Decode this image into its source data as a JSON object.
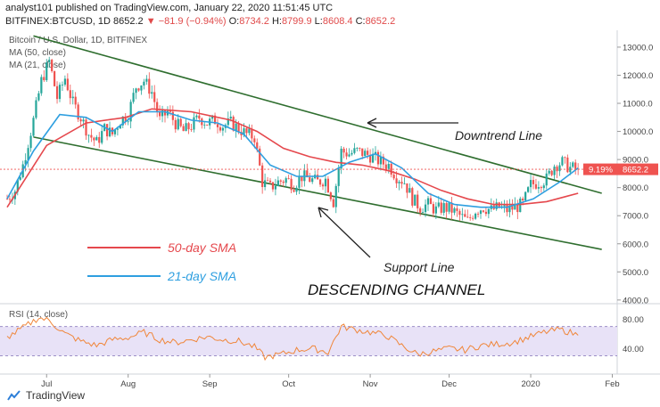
{
  "header": {
    "line1": "analyst101 published on TradingView.com, January 22, 2020 11:51:45 UTC",
    "symbol": "BITFINEX:BTCUSD, 1D",
    "last": "8652.2",
    "change": "▼ −81.9 (−0.94%)",
    "o_label": "O:",
    "o": "8734.2",
    "h_label": "H:",
    "h": "8799.9",
    "l_label": "L:",
    "l": "8608.4",
    "c_label": "C:",
    "c": "8652.2"
  },
  "footer": {
    "brand": "TradingView"
  },
  "colors": {
    "up": "#26a69a",
    "down": "#ef5350",
    "sma50": "#e5484d",
    "sma21": "#2e9fe0",
    "channel": "#2f6e2f",
    "rsi": "#f0863a",
    "price_badge": "#ef5350"
  },
  "chart_data": {
    "type": "candlestick",
    "title": "Bitcoin / U.S. Dollar, 1D, BITFINEX",
    "legend": [
      "MA (50, close)",
      "MA (21, close)"
    ],
    "y_ticks": [
      "13000.0",
      "12000.0",
      "11000.0",
      "10000.0",
      "9000.0",
      "8000.0",
      "7000.0",
      "6000.0",
      "5000.0",
      "4000.0"
    ],
    "ylim": [
      3900,
      13600
    ],
    "x_ticks": [
      {
        "label": "Jul",
        "day": 15
      },
      {
        "label": "Aug",
        "day": 46
      },
      {
        "label": "Sep",
        "day": 77
      },
      {
        "label": "Oct",
        "day": 107
      },
      {
        "label": "Nov",
        "day": 138
      },
      {
        "label": "Dec",
        "day": 168
      },
      {
        "label": "2020",
        "day": 199
      },
      {
        "label": "Feb",
        "day": 230
      }
    ],
    "current_price": "8652.2",
    "price_change_pct": "9.19%",
    "close_path": [
      [
        0,
        7600
      ],
      [
        3,
        7900
      ],
      [
        6,
        8800
      ],
      [
        10,
        10400
      ],
      [
        13,
        11800
      ],
      [
        16,
        12500
      ],
      [
        19,
        11200
      ],
      [
        22,
        11900
      ],
      [
        25,
        11000
      ],
      [
        28,
        10500
      ],
      [
        31,
        9900
      ],
      [
        34,
        9600
      ],
      [
        37,
        10100
      ],
      [
        40,
        9900
      ],
      [
        43,
        10400
      ],
      [
        46,
        10600
      ],
      [
        49,
        11600
      ],
      [
        52,
        11800
      ],
      [
        55,
        11400
      ],
      [
        58,
        10400
      ],
      [
        61,
        10700
      ],
      [
        64,
        10300
      ],
      [
        67,
        10000
      ],
      [
        70,
        10200
      ],
      [
        73,
        10500
      ],
      [
        76,
        10300
      ],
      [
        79,
        10400
      ],
      [
        82,
        10200
      ],
      [
        85,
        10300
      ],
      [
        88,
        10100
      ],
      [
        91,
        9900
      ],
      [
        94,
        9800
      ],
      [
        97,
        8200
      ],
      [
        100,
        8000
      ],
      [
        103,
        8200
      ],
      [
        106,
        8300
      ],
      [
        109,
        8100
      ],
      [
        112,
        8400
      ],
      [
        115,
        8300
      ],
      [
        118,
        8200
      ],
      [
        121,
        8300
      ],
      [
        124,
        7500
      ],
      [
        127,
        9300
      ],
      [
        130,
        9200
      ],
      [
        133,
        9300
      ],
      [
        136,
        9200
      ],
      [
        139,
        9100
      ],
      [
        142,
        8900
      ],
      [
        145,
        8800
      ],
      [
        148,
        8400
      ],
      [
        151,
        8200
      ],
      [
        154,
        7600
      ],
      [
        157,
        7300
      ],
      [
        160,
        7400
      ],
      [
        163,
        7200
      ],
      [
        166,
        7300
      ],
      [
        169,
        7200
      ],
      [
        172,
        7000
      ],
      [
        175,
        6800
      ],
      [
        178,
        7200
      ],
      [
        181,
        7300
      ],
      [
        184,
        7200
      ],
      [
        187,
        7300
      ],
      [
        190,
        7200
      ],
      [
        193,
        7300
      ],
      [
        196,
        7400
      ],
      [
        199,
        8100
      ],
      [
        202,
        8200
      ],
      [
        205,
        8300
      ],
      [
        208,
        8800
      ],
      [
        211,
        8900
      ],
      [
        214,
        8700
      ],
      [
        217,
        8652
      ]
    ],
    "ma50": [
      [
        0,
        7300
      ],
      [
        15,
        9500
      ],
      [
        30,
        10300
      ],
      [
        45,
        10500
      ],
      [
        55,
        10800
      ],
      [
        70,
        10700
      ],
      [
        85,
        10400
      ],
      [
        95,
        10000
      ],
      [
        105,
        9400
      ],
      [
        115,
        9100
      ],
      [
        125,
        8900
      ],
      [
        135,
        8800
      ],
      [
        145,
        8600
      ],
      [
        155,
        8300
      ],
      [
        165,
        7900
      ],
      [
        175,
        7600
      ],
      [
        185,
        7400
      ],
      [
        195,
        7400
      ],
      [
        205,
        7500
      ],
      [
        217,
        7800
      ]
    ],
    "ma21": [
      [
        0,
        7600
      ],
      [
        10,
        9300
      ],
      [
        20,
        10600
      ],
      [
        30,
        10500
      ],
      [
        40,
        10000
      ],
      [
        50,
        10700
      ],
      [
        60,
        10700
      ],
      [
        70,
        10400
      ],
      [
        80,
        10300
      ],
      [
        90,
        9900
      ],
      [
        100,
        8800
      ],
      [
        110,
        8400
      ],
      [
        120,
        8400
      ],
      [
        130,
        8900
      ],
      [
        140,
        9200
      ],
      [
        150,
        8700
      ],
      [
        160,
        7800
      ],
      [
        170,
        7400
      ],
      [
        180,
        7300
      ],
      [
        190,
        7300
      ],
      [
        200,
        7600
      ],
      [
        210,
        8200
      ],
      [
        217,
        8700
      ]
    ],
    "channel_upper": [
      [
        10,
        13400
      ],
      [
        226,
        7800
      ]
    ],
    "channel_lower": [
      [
        10,
        9800
      ],
      [
        226,
        5800
      ]
    ],
    "rsi": {
      "label": "RSI (14, close)",
      "ticks": [
        "80.00",
        "40.00"
      ],
      "band": [
        30,
        70
      ],
      "values": [
        [
          0,
          55
        ],
        [
          6,
          68
        ],
        [
          12,
          82
        ],
        [
          16,
          78
        ],
        [
          22,
          60
        ],
        [
          28,
          50
        ],
        [
          34,
          44
        ],
        [
          40,
          52
        ],
        [
          46,
          55
        ],
        [
          52,
          62
        ],
        [
          58,
          52
        ],
        [
          64,
          48
        ],
        [
          70,
          52
        ],
        [
          76,
          56
        ],
        [
          82,
          52
        ],
        [
          88,
          50
        ],
        [
          94,
          42
        ],
        [
          98,
          28
        ],
        [
          104,
          32
        ],
        [
          110,
          38
        ],
        [
          116,
          40
        ],
        [
          122,
          35
        ],
        [
          127,
          70
        ],
        [
          132,
          66
        ],
        [
          138,
          62
        ],
        [
          144,
          58
        ],
        [
          150,
          44
        ],
        [
          156,
          32
        ],
        [
          162,
          36
        ],
        [
          168,
          40
        ],
        [
          174,
          38
        ],
        [
          180,
          44
        ],
        [
          186,
          46
        ],
        [
          192,
          48
        ],
        [
          198,
          55
        ],
        [
          204,
          62
        ],
        [
          210,
          66
        ],
        [
          214,
          62
        ],
        [
          217,
          58
        ]
      ]
    },
    "annotations": {
      "downtrend": "Downtrend Line",
      "support": "Support Line",
      "channel": "DESCENDING CHANNEL",
      "sma50": "50-day SMA",
      "sma21": "21-day SMA"
    }
  }
}
